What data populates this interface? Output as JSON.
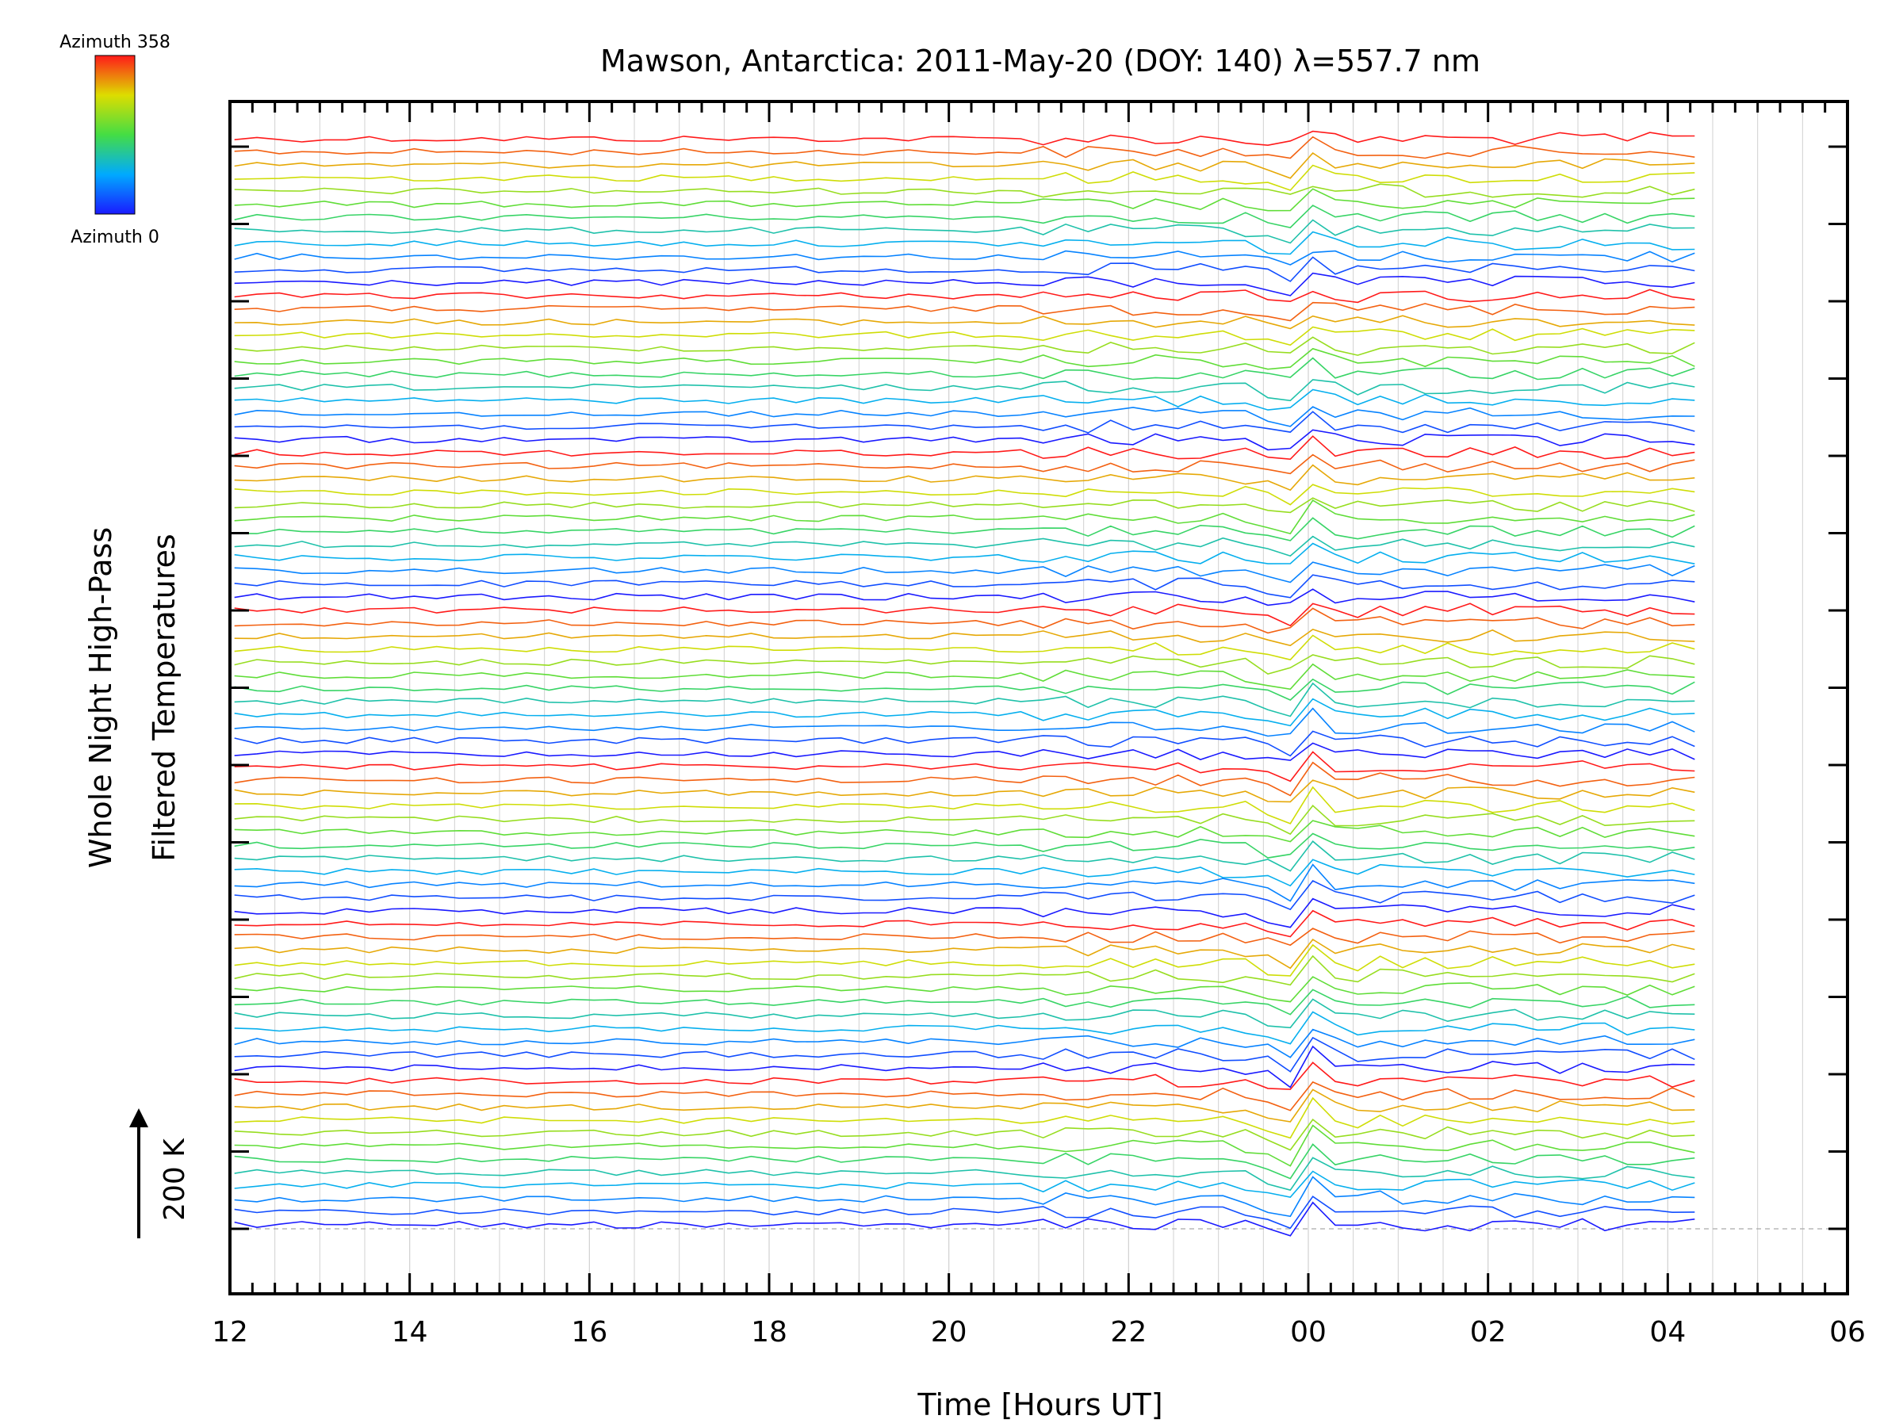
{
  "chart_data": {
    "type": "line",
    "title": "Mawson, Antarctica: 2011-May-20 (DOY: 140) λ=557.7 nm",
    "xlabel": "Time [Hours UT]",
    "ylabel_line1": "Whole Night High-Pass",
    "ylabel_line2": "Filtered Temperatures",
    "x_ticks": [
      "12",
      "14",
      "16",
      "18",
      "20",
      "22",
      "00",
      "02",
      "04",
      "06"
    ],
    "xlim_hours": [
      12,
      30
    ],
    "data_end_hour": 28.3,
    "colorbar": {
      "top_label": "Azimuth 358",
      "bottom_label": "Azimuth 0",
      "low_color": "#1a1aff",
      "high_color": "#ff1a1a"
    },
    "scale_bar_label": "200 K",
    "stack": {
      "groups": 7,
      "zones_per_group": 12,
      "description_note": ""
    },
    "colors": {
      "grid": "#d0d0d0",
      "axis": "#000000",
      "baseline": "#aaaaaa"
    }
  }
}
